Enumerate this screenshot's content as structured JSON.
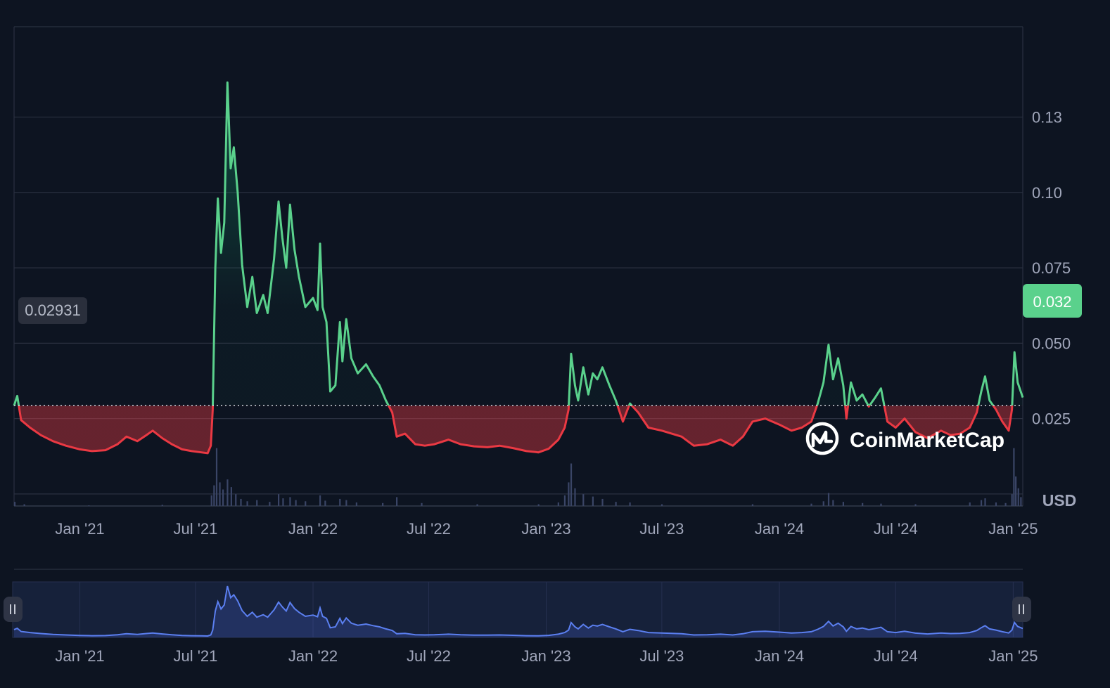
{
  "brand": {
    "name": "CoinMarketCap"
  },
  "currency_label": "USD",
  "colors": {
    "background": "#0d1421",
    "up": "#16c784",
    "up_line": "#5ad18c",
    "down_line": "#ea3943",
    "grid": "#2a3040",
    "navigator": "#4d6fe6",
    "label_text": "#a1a7bb"
  },
  "chart_data": {
    "type": "area",
    "title": "",
    "xlabel": "",
    "ylabel": "",
    "x_tick_labels": [
      "Jan '21",
      "Jul '21",
      "Jan '22",
      "Jul '22",
      "Jan '23",
      "Jul '23",
      "Jan '24",
      "Jul '24",
      "Jan '25"
    ],
    "y_tick_labels": [
      "0.025",
      "0.050",
      "0.075",
      "0.10",
      "0.13"
    ],
    "ylim": [
      -0.004,
      0.155
    ],
    "xlim": [
      "2020-09-20",
      "2025-01-16"
    ],
    "baseline_value": "0.02931",
    "current_price_label": "0.032",
    "grid": true,
    "series": [
      {
        "values": [
          [
            "2020-09-20",
            0.0293
          ],
          [
            "2020-09-25",
            0.0325
          ],
          [
            "2020-10-01",
            0.0245
          ],
          [
            "2020-10-15",
            0.022
          ],
          [
            "2020-11-01",
            0.0195
          ],
          [
            "2020-11-20",
            0.0175
          ],
          [
            "2020-12-10",
            0.016
          ],
          [
            "2021-01-01",
            0.0148
          ],
          [
            "2021-01-20",
            0.0142
          ],
          [
            "2021-02-10",
            0.0145
          ],
          [
            "2021-03-01",
            0.0165
          ],
          [
            "2021-03-15",
            0.019
          ],
          [
            "2021-04-01",
            0.0175
          ],
          [
            "2021-04-15",
            0.0195
          ],
          [
            "2021-04-25",
            0.021
          ],
          [
            "2021-05-10",
            0.0185
          ],
          [
            "2021-05-25",
            0.0165
          ],
          [
            "2021-06-10",
            0.0148
          ],
          [
            "2021-06-25",
            0.0142
          ],
          [
            "2021-07-10",
            0.0138
          ],
          [
            "2021-07-20",
            0.0135
          ],
          [
            "2021-07-25",
            0.016
          ],
          [
            "2021-07-28",
            0.028
          ],
          [
            "2021-08-01",
            0.075
          ],
          [
            "2021-08-05",
            0.098
          ],
          [
            "2021-08-10",
            0.08
          ],
          [
            "2021-08-15",
            0.09
          ],
          [
            "2021-08-20",
            0.1365
          ],
          [
            "2021-08-25",
            0.108
          ],
          [
            "2021-08-30",
            0.115
          ],
          [
            "2021-09-05",
            0.1
          ],
          [
            "2021-09-12",
            0.076
          ],
          [
            "2021-09-20",
            0.062
          ],
          [
            "2021-09-28",
            0.072
          ],
          [
            "2021-10-05",
            0.06
          ],
          [
            "2021-10-15",
            0.066
          ],
          [
            "2021-10-22",
            0.06
          ],
          [
            "2021-11-01",
            0.078
          ],
          [
            "2021-11-08",
            0.097
          ],
          [
            "2021-11-14",
            0.085
          ],
          [
            "2021-11-20",
            0.075
          ],
          [
            "2021-11-26",
            0.096
          ],
          [
            "2021-12-03",
            0.081
          ],
          [
            "2021-12-10",
            0.072
          ],
          [
            "2021-12-20",
            0.062
          ],
          [
            "2022-01-01",
            0.065
          ],
          [
            "2022-01-08",
            0.061
          ],
          [
            "2022-01-12",
            0.083
          ],
          [
            "2022-01-16",
            0.062
          ],
          [
            "2022-01-22",
            0.057
          ],
          [
            "2022-01-28",
            0.034
          ],
          [
            "2022-02-05",
            0.036
          ],
          [
            "2022-02-12",
            0.057
          ],
          [
            "2022-02-16",
            0.044
          ],
          [
            "2022-02-22",
            0.058
          ],
          [
            "2022-03-02",
            0.045
          ],
          [
            "2022-03-12",
            0.04
          ],
          [
            "2022-03-25",
            0.043
          ],
          [
            "2022-04-05",
            0.039
          ],
          [
            "2022-04-15",
            0.036
          ],
          [
            "2022-04-25",
            0.031
          ],
          [
            "2022-05-05",
            0.027
          ],
          [
            "2022-05-12",
            0.019
          ],
          [
            "2022-05-25",
            0.02
          ],
          [
            "2022-06-10",
            0.0165
          ],
          [
            "2022-06-25",
            0.016
          ],
          [
            "2022-07-10",
            0.0165
          ],
          [
            "2022-08-01",
            0.018
          ],
          [
            "2022-08-20",
            0.0165
          ],
          [
            "2022-09-10",
            0.0158
          ],
          [
            "2022-10-01",
            0.0155
          ],
          [
            "2022-10-20",
            0.016
          ],
          [
            "2022-11-10",
            0.0152
          ],
          [
            "2022-12-01",
            0.0142
          ],
          [
            "2022-12-20",
            0.0138
          ],
          [
            "2023-01-05",
            0.015
          ],
          [
            "2023-01-20",
            0.018
          ],
          [
            "2023-01-30",
            0.022
          ],
          [
            "2023-02-05",
            0.028
          ],
          [
            "2023-02-09",
            0.0465
          ],
          [
            "2023-02-15",
            0.036
          ],
          [
            "2023-02-20",
            0.031
          ],
          [
            "2023-02-28",
            0.042
          ],
          [
            "2023-03-08",
            0.033
          ],
          [
            "2023-03-15",
            0.04
          ],
          [
            "2023-03-22",
            0.038
          ],
          [
            "2023-03-30",
            0.042
          ],
          [
            "2023-04-10",
            0.036
          ],
          [
            "2023-04-20",
            0.031
          ],
          [
            "2023-05-01",
            0.024
          ],
          [
            "2023-05-12",
            0.03
          ],
          [
            "2023-05-25",
            0.027
          ],
          [
            "2023-06-10",
            0.022
          ],
          [
            "2023-07-01",
            0.021
          ],
          [
            "2023-08-01",
            0.019
          ],
          [
            "2023-08-20",
            0.016
          ],
          [
            "2023-09-10",
            0.0165
          ],
          [
            "2023-10-01",
            0.018
          ],
          [
            "2023-10-20",
            0.016
          ],
          [
            "2023-11-05",
            0.019
          ],
          [
            "2023-11-20",
            0.024
          ],
          [
            "2023-12-10",
            0.025
          ],
          [
            "2024-01-01",
            0.023
          ],
          [
            "2024-01-20",
            0.021
          ],
          [
            "2024-02-05",
            0.022
          ],
          [
            "2024-02-20",
            0.024
          ],
          [
            "2024-03-01",
            0.03
          ],
          [
            "2024-03-10",
            0.037
          ],
          [
            "2024-03-18",
            0.0495
          ],
          [
            "2024-03-25",
            0.038
          ],
          [
            "2024-04-02",
            0.045
          ],
          [
            "2024-04-10",
            0.036
          ],
          [
            "2024-04-15",
            0.025
          ],
          [
            "2024-04-22",
            0.037
          ],
          [
            "2024-05-01",
            0.031
          ],
          [
            "2024-05-10",
            0.033
          ],
          [
            "2024-05-20",
            0.029
          ],
          [
            "2024-05-30",
            0.032
          ],
          [
            "2024-06-08",
            0.035
          ],
          [
            "2024-06-18",
            0.024
          ],
          [
            "2024-07-01",
            0.022
          ],
          [
            "2024-07-15",
            0.025
          ],
          [
            "2024-08-01",
            0.0205
          ],
          [
            "2024-08-20",
            0.0185
          ],
          [
            "2024-09-10",
            0.021
          ],
          [
            "2024-09-25",
            0.0195
          ],
          [
            "2024-10-10",
            0.02
          ],
          [
            "2024-10-25",
            0.022
          ],
          [
            "2024-11-05",
            0.027
          ],
          [
            "2024-11-12",
            0.034
          ],
          [
            "2024-11-18",
            0.039
          ],
          [
            "2024-11-25",
            0.031
          ],
          [
            "2024-12-05",
            0.028
          ],
          [
            "2024-12-15",
            0.024
          ],
          [
            "2024-12-25",
            0.021
          ],
          [
            "2024-12-30",
            0.028
          ],
          [
            "2025-01-03",
            0.047
          ],
          [
            "2025-01-08",
            0.037
          ],
          [
            "2025-01-16",
            0.032
          ]
        ]
      }
    ],
    "volume": [
      [
        "2020-09-21",
        0.07
      ],
      [
        "2020-10-06",
        0.03
      ],
      [
        "2021-01-15",
        0.01
      ],
      [
        "2021-05-10",
        0.02
      ],
      [
        "2021-07-26",
        0.18
      ],
      [
        "2021-07-30",
        0.35
      ],
      [
        "2021-08-03",
        0.98
      ],
      [
        "2021-08-08",
        0.4
      ],
      [
        "2021-08-13",
        0.28
      ],
      [
        "2021-08-20",
        0.45
      ],
      [
        "2021-08-26",
        0.32
      ],
      [
        "2021-09-02",
        0.2
      ],
      [
        "2021-09-10",
        0.12
      ],
      [
        "2021-09-20",
        0.08
      ],
      [
        "2021-10-05",
        0.1
      ],
      [
        "2021-10-25",
        0.07
      ],
      [
        "2021-11-08",
        0.2
      ],
      [
        "2021-11-15",
        0.13
      ],
      [
        "2021-11-26",
        0.15
      ],
      [
        "2021-12-05",
        0.1
      ],
      [
        "2021-12-20",
        0.08
      ],
      [
        "2022-01-12",
        0.18
      ],
      [
        "2022-01-20",
        0.09
      ],
      [
        "2022-02-12",
        0.12
      ],
      [
        "2022-02-22",
        0.1
      ],
      [
        "2022-03-10",
        0.06
      ],
      [
        "2022-04-20",
        0.05
      ],
      [
        "2022-05-12",
        0.15
      ],
      [
        "2022-06-20",
        0.05
      ],
      [
        "2022-09-15",
        0.03
      ],
      [
        "2022-12-20",
        0.03
      ],
      [
        "2023-01-20",
        0.06
      ],
      [
        "2023-01-30",
        0.18
      ],
      [
        "2023-02-05",
        0.4
      ],
      [
        "2023-02-09",
        0.72
      ],
      [
        "2023-02-15",
        0.3
      ],
      [
        "2023-02-28",
        0.2
      ],
      [
        "2023-03-15",
        0.16
      ],
      [
        "2023-03-30",
        0.12
      ],
      [
        "2023-04-20",
        0.07
      ],
      [
        "2023-05-12",
        0.06
      ],
      [
        "2023-07-01",
        0.03
      ],
      [
        "2023-11-20",
        0.03
      ],
      [
        "2024-02-20",
        0.04
      ],
      [
        "2024-03-10",
        0.08
      ],
      [
        "2024-03-18",
        0.22
      ],
      [
        "2024-03-25",
        0.1
      ],
      [
        "2024-04-10",
        0.07
      ],
      [
        "2024-05-10",
        0.05
      ],
      [
        "2024-06-08",
        0.04
      ],
      [
        "2024-08-01",
        0.03
      ],
      [
        "2024-10-25",
        0.06
      ],
      [
        "2024-11-12",
        0.1
      ],
      [
        "2024-11-18",
        0.13
      ],
      [
        "2024-12-05",
        0.06
      ],
      [
        "2024-12-20",
        0.05
      ],
      [
        "2024-12-30",
        0.2
      ],
      [
        "2025-01-02",
        0.98
      ],
      [
        "2025-01-05",
        0.5
      ],
      [
        "2025-01-09",
        0.3
      ],
      [
        "2025-01-13",
        0.15
      ]
    ]
  }
}
